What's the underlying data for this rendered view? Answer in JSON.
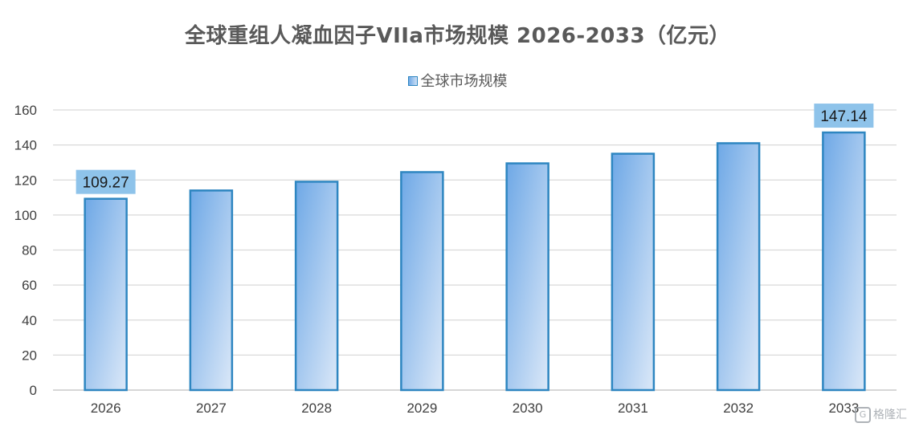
{
  "title": "全球重组人凝血因子VIIa市场规模 2026-2033（亿元）",
  "legend_label": "全球市场规模",
  "watermark": "格隆汇",
  "colors": {
    "bar_border": "#2e86c1",
    "bar_grad_start": "#6ea8e6",
    "bar_grad_end": "#dbe8f8",
    "label_bg": "#8ec3ea",
    "grid": "#d9d9d9"
  },
  "chart_data": {
    "type": "bar",
    "title": "全球重组人凝血因子VIIa市场规模 2026-2033（亿元）",
    "categories": [
      "2026",
      "2027",
      "2028",
      "2029",
      "2030",
      "2031",
      "2032",
      "2033"
    ],
    "series": [
      {
        "name": "全球市场规模",
        "values": [
          109.27,
          114,
          119,
          124.5,
          129.5,
          135,
          141,
          147.14
        ]
      }
    ],
    "data_labels": [
      {
        "index": 0,
        "text": "109.27"
      },
      {
        "index": 7,
        "text": "147.14"
      }
    ],
    "ylim": [
      0,
      160
    ],
    "yticks": [
      0,
      20,
      40,
      60,
      80,
      100,
      120,
      140,
      160
    ],
    "grid": true,
    "legend_position": "top"
  }
}
